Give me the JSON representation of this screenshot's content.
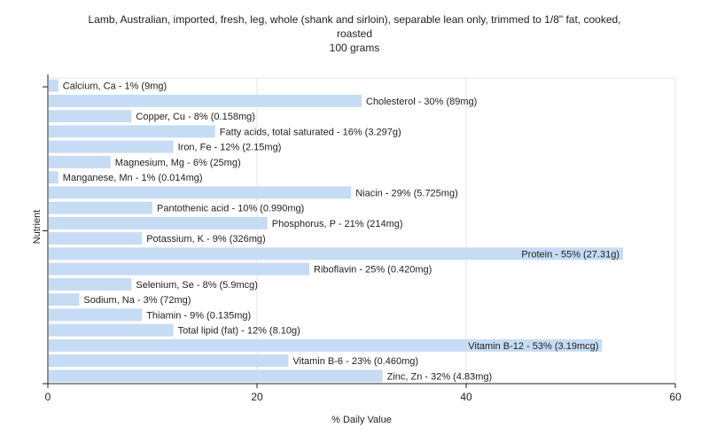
{
  "chart_data": {
    "type": "bar",
    "orientation": "horizontal",
    "title_lines": [
      "Lamb, Australian, imported, fresh, leg, whole (shank and sirloin), separable lean only, trimmed to 1/8\" fat, cooked,",
      "roasted",
      "100 grams"
    ],
    "xlabel": "% Daily Value",
    "ylabel": "Nutrient",
    "xlim": [
      0,
      60
    ],
    "xticks": [
      0,
      20,
      40,
      60
    ],
    "grid": true,
    "bar_color": "#c6dcf5",
    "categories": [
      "Calcium, Ca",
      "Cholesterol",
      "Copper, Cu",
      "Fatty acids, total saturated",
      "Iron, Fe",
      "Magnesium, Mg",
      "Manganese, Mn",
      "Niacin",
      "Pantothenic acid",
      "Phosphorus, P",
      "Potassium, K",
      "Protein",
      "Riboflavin",
      "Selenium, Se",
      "Sodium, Na",
      "Thiamin",
      "Total lipid (fat)",
      "Vitamin B-12",
      "Vitamin B-6",
      "Zinc, Zn"
    ],
    "values": [
      1,
      30,
      8,
      16,
      12,
      6,
      1,
      29,
      10,
      21,
      9,
      55,
      25,
      8,
      3,
      9,
      12,
      53,
      23,
      32
    ],
    "labels": [
      "Calcium, Ca - 1% (9mg)",
      "Cholesterol - 30% (89mg)",
      "Copper, Cu - 8% (0.158mg)",
      "Fatty acids, total saturated - 16% (3.297g)",
      "Iron, Fe - 12% (2.15mg)",
      "Magnesium, Mg - 6% (25mg)",
      "Manganese, Mn - 1% (0.014mg)",
      "Niacin - 29% (5.725mg)",
      "Pantothenic acid - 10% (0.990mg)",
      "Phosphorus, P - 21% (214mg)",
      "Potassium, K - 9% (326mg)",
      "Protein - 55% (27.31g)",
      "Riboflavin - 25% (0.420mg)",
      "Selenium, Se - 8% (5.9mcg)",
      "Sodium, Na - 3% (72mg)",
      "Thiamin - 9% (0.135mg)",
      "Total lipid (fat) - 12% (8.10g)",
      "Vitamin B-12 - 53% (3.19mcg)",
      "Vitamin B-6 - 23% (0.460mg)",
      "Zinc, Zn - 32% (4.83mg)"
    ]
  }
}
